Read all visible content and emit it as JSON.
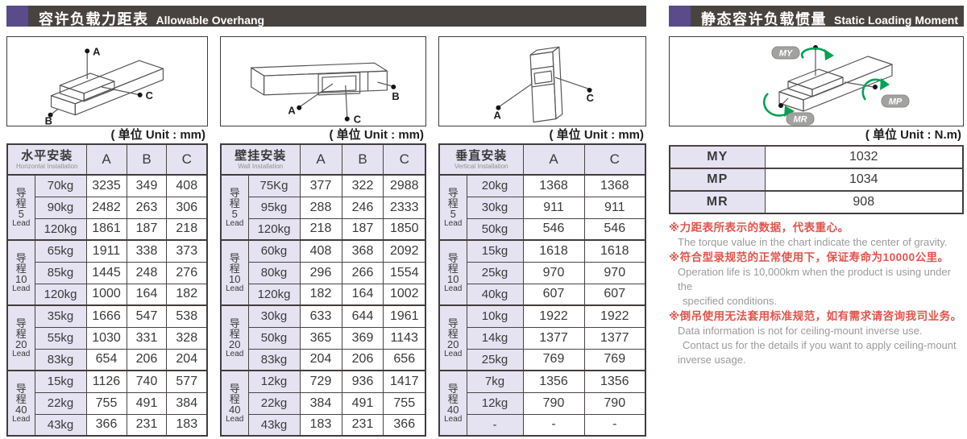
{
  "left_panel": {
    "title_zh": "容许负载力距表",
    "title_en": "Allowable Overhang",
    "unit_label": "( 单位 Unit : mm)",
    "diagrams": [
      {
        "points": [
          "A",
          "B",
          "C"
        ]
      },
      {
        "points": [
          "A",
          "B",
          "C"
        ]
      },
      {
        "points": [
          "A",
          "C"
        ]
      }
    ],
    "tables": [
      {
        "name_zh": "水平安装",
        "name_en": "Horizontal Installation",
        "value_columns": [
          "A",
          "B",
          "C"
        ],
        "groups": [
          {
            "lead_chars": [
              "导",
              "程",
              "5"
            ],
            "lead_word": "Lead",
            "rows": [
              {
                "load": "70kg",
                "values": [
                  "3235",
                  "349",
                  "408"
                ]
              },
              {
                "load": "90kg",
                "values": [
                  "2482",
                  "263",
                  "306"
                ]
              },
              {
                "load": "120kg",
                "values": [
                  "1861",
                  "187",
                  "218"
                ]
              }
            ]
          },
          {
            "lead_chars": [
              "导",
              "程",
              "10"
            ],
            "lead_word": "Lead",
            "rows": [
              {
                "load": "65kg",
                "values": [
                  "1911",
                  "338",
                  "373"
                ]
              },
              {
                "load": "85kg",
                "values": [
                  "1445",
                  "248",
                  "276"
                ]
              },
              {
                "load": "120kg",
                "values": [
                  "1000",
                  "164",
                  "182"
                ]
              }
            ]
          },
          {
            "lead_chars": [
              "导",
              "程",
              "20"
            ],
            "lead_word": "Lead",
            "rows": [
              {
                "load": "35kg",
                "values": [
                  "1666",
                  "547",
                  "538"
                ]
              },
              {
                "load": "55kg",
                "values": [
                  "1030",
                  "331",
                  "328"
                ]
              },
              {
                "load": "83kg",
                "values": [
                  "654",
                  "206",
                  "204"
                ]
              }
            ]
          },
          {
            "lead_chars": [
              "导",
              "程",
              "40"
            ],
            "lead_word": "Lead",
            "rows": [
              {
                "load": "15kg",
                "values": [
                  "1126",
                  "740",
                  "577"
                ]
              },
              {
                "load": "22kg",
                "values": [
                  "755",
                  "491",
                  "384"
                ]
              },
              {
                "load": "43kg",
                "values": [
                  "366",
                  "231",
                  "183"
                ]
              }
            ]
          }
        ]
      },
      {
        "name_zh": "壁挂安装",
        "name_en": "Wall Installation",
        "value_columns": [
          "A",
          "B",
          "C"
        ],
        "groups": [
          {
            "lead_chars": [
              "导",
              "程",
              "5"
            ],
            "lead_word": "Lead",
            "rows": [
              {
                "load": "75Kg",
                "values": [
                  "377",
                  "322",
                  "2988"
                ]
              },
              {
                "load": "95kg",
                "values": [
                  "288",
                  "246",
                  "2333"
                ]
              },
              {
                "load": "120kg",
                "values": [
                  "218",
                  "187",
                  "1850"
                ]
              }
            ]
          },
          {
            "lead_chars": [
              "导",
              "程",
              "10"
            ],
            "lead_word": "Lead",
            "rows": [
              {
                "load": "60kg",
                "values": [
                  "408",
                  "368",
                  "2092"
                ]
              },
              {
                "load": "80kg",
                "values": [
                  "296",
                  "266",
                  "1554"
                ]
              },
              {
                "load": "120kg",
                "values": [
                  "182",
                  "164",
                  "1002"
                ]
              }
            ]
          },
          {
            "lead_chars": [
              "导",
              "程",
              "20"
            ],
            "lead_word": "Lead",
            "rows": [
              {
                "load": "30kg",
                "values": [
                  "633",
                  "644",
                  "1961"
                ]
              },
              {
                "load": "50kg",
                "values": [
                  "365",
                  "369",
                  "1143"
                ]
              },
              {
                "load": "83kg",
                "values": [
                  "204",
                  "206",
                  "656"
                ]
              }
            ]
          },
          {
            "lead_chars": [
              "导",
              "程",
              "40"
            ],
            "lead_word": "Lead",
            "rows": [
              {
                "load": "12kg",
                "values": [
                  "729",
                  "936",
                  "1417"
                ]
              },
              {
                "load": "22kg",
                "values": [
                  "384",
                  "491",
                  "755"
                ]
              },
              {
                "load": "43kg",
                "values": [
                  "183",
                  "231",
                  "366"
                ]
              }
            ]
          }
        ]
      },
      {
        "name_zh": "垂直安装",
        "name_en": "Vertical Installation",
        "value_columns": [
          "A",
          "C"
        ],
        "groups": [
          {
            "lead_chars": [
              "导",
              "程",
              "5"
            ],
            "lead_word": "Lead",
            "rows": [
              {
                "load": "20kg",
                "values": [
                  "1368",
                  "1368"
                ]
              },
              {
                "load": "30kg",
                "values": [
                  "911",
                  "911"
                ]
              },
              {
                "load": "50kg",
                "values": [
                  "546",
                  "546"
                ]
              }
            ]
          },
          {
            "lead_chars": [
              "导",
              "程",
              "10"
            ],
            "lead_word": "Lead",
            "rows": [
              {
                "load": "15kg",
                "values": [
                  "1618",
                  "1618"
                ]
              },
              {
                "load": "25kg",
                "values": [
                  "970",
                  "970"
                ]
              },
              {
                "load": "40kg",
                "values": [
                  "607",
                  "607"
                ]
              }
            ]
          },
          {
            "lead_chars": [
              "导",
              "程",
              "20"
            ],
            "lead_word": "Lead",
            "rows": [
              {
                "load": "10kg",
                "values": [
                  "1922",
                  "1922"
                ]
              },
              {
                "load": "14kg",
                "values": [
                  "1377",
                  "1377"
                ]
              },
              {
                "load": "25kg",
                "values": [
                  "769",
                  "769"
                ]
              }
            ]
          },
          {
            "lead_chars": [
              "导",
              "程",
              "40"
            ],
            "lead_word": "Lead",
            "rows": [
              {
                "load": "7kg",
                "values": [
                  "1356",
                  "1356"
                ]
              },
              {
                "load": "12kg",
                "values": [
                  "790",
                  "790"
                ]
              },
              {
                "load": "-",
                "values": [
                  "-",
                  "-"
                ]
              }
            ]
          }
        ]
      }
    ]
  },
  "right_panel": {
    "title_zh": "静态容许负载惯量",
    "title_en": "Static Loading Moment",
    "unit_label": "( 单位 Unit : N.m)",
    "diagram": {
      "labels": [
        "MY",
        "MP",
        "MR"
      ]
    },
    "moment_rows": [
      {
        "label": "MY",
        "value": "1032"
      },
      {
        "label": "MP",
        "value": "1034"
      },
      {
        "label": "MR",
        "value": "908"
      }
    ],
    "notes": [
      {
        "zh": "※力距表所表示的数据，代表重心。",
        "en": [
          "The torque value in the chart indicate the center of gravity."
        ]
      },
      {
        "zh": "※符合型录规范的正常使用下，保证寿命为10000公里。",
        "en": [
          "Operation life is 10,000km when the product is using under the",
          "specified conditions."
        ]
      },
      {
        "zh": "※倒吊使用无法套用标准规范，如有需求请咨询我司业务。",
        "en": [
          "Data information is not for ceiling-mount inverse use.",
          "Contact us for the details if you want to apply ceiling-mount",
          "inverse usage."
        ]
      }
    ]
  },
  "colors": {
    "title_bar_bg": "#494340",
    "accent_purple": "#5a4b8a",
    "cell_lavender": "#e5e3f1",
    "border_dark": "#423c3b",
    "note_red": "#e2544c",
    "note_gray": "#9a9a9a",
    "arrow_green": "#00a254",
    "badge_gray": "#a2a2a0"
  }
}
